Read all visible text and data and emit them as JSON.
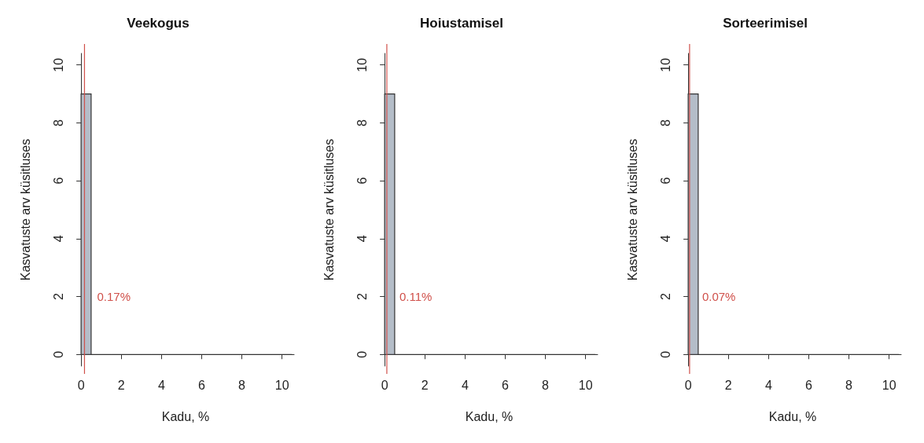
{
  "chart_data": [
    {
      "type": "histogram",
      "title": "Veekogus",
      "xlabel": "Kadu, %",
      "ylabel": "Kasvatuste arv küsitluses",
      "bins": [
        0,
        0.5,
        1,
        1.5,
        2,
        2.5,
        3,
        3.5,
        4,
        4.5,
        5,
        5.5,
        6,
        6.5,
        7,
        7.5,
        8,
        8.5,
        9,
        9.5,
        10,
        10.5
      ],
      "values": [
        9,
        0,
        0,
        0,
        0,
        0,
        0,
        0,
        0,
        0,
        0,
        0,
        0,
        0,
        0,
        0,
        0,
        0,
        0,
        0,
        0
      ],
      "color": "#b4bdc8",
      "xlim": [
        -0.2,
        10.6
      ],
      "xticks": [
        0,
        2,
        4,
        6,
        8,
        10
      ],
      "ylim": [
        -0.4,
        10.4
      ],
      "yticks": [
        0,
        2,
        4,
        6,
        8,
        10
      ],
      "ref_lines": [
        {
          "axis": "x",
          "value": 0.17,
          "label": "0.17%",
          "color": "#d0504a"
        }
      ]
    },
    {
      "type": "histogram",
      "title": "Hoiustamisel",
      "xlabel": "Kadu, %",
      "ylabel": "Kasvatuste arv küsitluses",
      "bins": [
        0,
        0.5,
        1,
        1.5,
        2,
        2.5,
        3,
        3.5,
        4,
        4.5,
        5,
        5.5,
        6,
        6.5,
        7,
        7.5,
        8,
        8.5,
        9,
        9.5,
        10,
        10.5
      ],
      "values": [
        9,
        0,
        0,
        0,
        0,
        0,
        0,
        0,
        0,
        0,
        0,
        0,
        0,
        0,
        0,
        0,
        0,
        0,
        0,
        0,
        0
      ],
      "color": "#b4bdc8",
      "xlim": [
        -0.2,
        10.6
      ],
      "xticks": [
        0,
        2,
        4,
        6,
        8,
        10
      ],
      "ylim": [
        -0.4,
        10.4
      ],
      "yticks": [
        0,
        2,
        4,
        6,
        8,
        10
      ],
      "ref_lines": [
        {
          "axis": "x",
          "value": 0.11,
          "label": "0.11%",
          "color": "#d0504a"
        }
      ]
    },
    {
      "type": "histogram",
      "title": "Sorteerimisel",
      "xlabel": "Kadu, %",
      "ylabel": "Kasvatuste arv küsitluses",
      "bins": [
        0,
        0.5,
        1,
        1.5,
        2,
        2.5,
        3,
        3.5,
        4,
        4.5,
        5,
        5.5,
        6,
        6.5,
        7,
        7.5,
        8,
        8.5,
        9,
        9.5,
        10,
        10.5
      ],
      "values": [
        9,
        0,
        0,
        0,
        0,
        0,
        0,
        0,
        0,
        0,
        0,
        0,
        0,
        0,
        0,
        0,
        0,
        0,
        0,
        0,
        0
      ],
      "color": "#b4bdc8",
      "xlim": [
        -0.2,
        10.6
      ],
      "xticks": [
        0,
        2,
        4,
        6,
        8,
        10
      ],
      "ylim": [
        -0.4,
        10.4
      ],
      "yticks": [
        0,
        2,
        4,
        6,
        8,
        10
      ],
      "ref_lines": [
        {
          "axis": "x",
          "value": 0.07,
          "label": "0.07%",
          "color": "#d0504a"
        }
      ]
    }
  ]
}
